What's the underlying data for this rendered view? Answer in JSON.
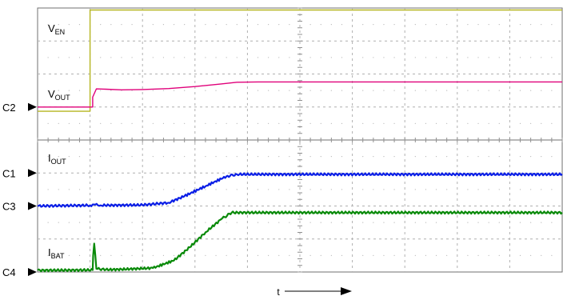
{
  "chart_data": {
    "type": "line",
    "title": "",
    "xlabel": "t",
    "ylabel": "",
    "grid": true,
    "x_divisions": 10,
    "y_divisions": 8,
    "channels": [
      {
        "name": "C1",
        "marker": "C1",
        "label": "V",
        "label_sub": "EN",
        "color": "#b5b520",
        "ground_div": 3.0
      },
      {
        "name": "C2",
        "marker": "C2",
        "label": "V",
        "label_sub": "OUT",
        "color": "#e0007a",
        "ground_div": 5.0
      },
      {
        "name": "C3",
        "marker": "C3",
        "label": "I",
        "label_sub": "OUT",
        "color": "#0a1ee6",
        "ground_div": 2.0
      },
      {
        "name": "C4",
        "marker": "C4",
        "label": "I",
        "label_sub": "BAT",
        "color": "#0a8a0a",
        "ground_div": 0.0
      }
    ],
    "series": [
      {
        "name": "VEN",
        "x": [
          0,
          1.0,
          1.0,
          10
        ],
        "y": [
          4.87,
          4.87,
          7.94,
          7.94
        ]
      },
      {
        "name": "VOUT",
        "x": [
          0,
          1.05,
          1.05,
          1.12,
          1.3,
          1.6,
          2.0,
          2.5,
          3.0,
          3.5,
          3.8,
          4.2,
          10
        ],
        "y": [
          5.0,
          5.0,
          5.3,
          5.55,
          5.54,
          5.52,
          5.53,
          5.56,
          5.62,
          5.7,
          5.75,
          5.76,
          5.76
        ]
      },
      {
        "name": "IOUT",
        "x": [
          0,
          1.0,
          1.1,
          1.2,
          2.0,
          2.5,
          2.8,
          3.2,
          3.6,
          3.8,
          10
        ],
        "y": [
          2.0,
          2.02,
          2.04,
          2.02,
          2.03,
          2.1,
          2.3,
          2.6,
          2.9,
          2.96,
          2.96
        ]
      },
      {
        "name": "IBAT",
        "x": [
          0,
          1.05,
          1.06,
          1.08,
          1.1,
          1.12,
          1.3,
          1.6,
          2.2,
          2.6,
          2.9,
          3.2,
          3.5,
          3.7,
          10
        ],
        "y": [
          0.05,
          0.06,
          0.5,
          0.86,
          0.5,
          0.1,
          0.07,
          0.08,
          0.12,
          0.35,
          0.75,
          1.2,
          1.6,
          1.8,
          1.8
        ]
      }
    ]
  }
}
